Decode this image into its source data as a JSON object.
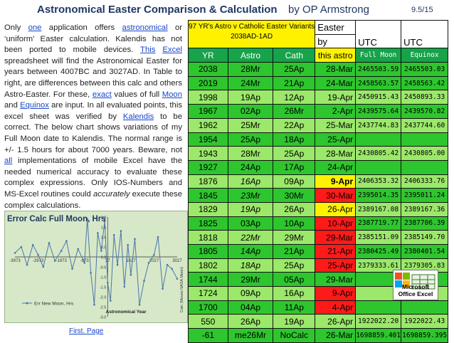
{
  "header": {
    "title": "Astronomical Easter Comparison & Calculation",
    "byline": "by OP Armstrong",
    "version": "9.5/15"
  },
  "intro": {
    "t1": "Only ",
    "l1": "one",
    "t2": " application offers ",
    "l2": "astronomical",
    "t3": " or ‘uniform’ Easter calculation. Kalendis has not been ported to mobile devices. ",
    "l3": "This",
    "t4": " ",
    "l4": "Excel",
    "t5": " spreadsheet will find the Astronomical Easter for years between 4007BC and 3027AD. In Table to right, are differences between this calc and others Astro-Easter. For these, ",
    "l5": "exact",
    "t6": " values of full ",
    "l6": "Moon",
    "t7": " and ",
    "l7": "Equinox",
    "t8": " are input. In all evaluated points, this excel sheet was verified by ",
    "l8": "Kalendis",
    "t9": " to be correct. The below chart shows variations of my Full Moon date to Kalendis. The normal range is +/- 1.5 hours for about 7000 years. Beware, not ",
    "l9": "all",
    "t10": " implementations of mobile Excel have the needed numerical accuracy to evaluate these complex expressions. Only IOS-Numbers and MS-Excel routines could ",
    "em1": "accurately",
    "t11": " execute these complex calculations."
  },
  "error_chart": {
    "title": "Error Calc Full Moon, Hrs",
    "x_ticks": [
      "-3973",
      "-2973",
      "-1973",
      "-973",
      "27",
      "1027",
      "2027",
      "3027"
    ],
    "y_ticks": [
      "2.0",
      "1.5",
      "1.0",
      "0.5",
      "0.0",
      "-0.5",
      "-1.0",
      "-1.5",
      "-2.0",
      "-2.5",
      "-3.0"
    ],
    "legend": "Err New Moon, Hrs",
    "xlabel": "Astronomical Year",
    "side_label": "Calc (Moves NASA Moon)"
  },
  "chart_data": {
    "type": "line",
    "title": "Error Calc Full Moon, Hrs",
    "xlabel": "Astronomical Year",
    "ylabel": "",
    "xlim": [
      -3973,
      3027
    ],
    "ylim": [
      -3.0,
      2.0
    ],
    "series": [
      {
        "name": "Err New Moon, Hrs",
        "x": [
          -3973,
          -3700,
          -3450,
          -3200,
          -2973,
          -2750,
          -2500,
          -2250,
          -1973,
          -1750,
          -1500,
          -1250,
          -973,
          -850,
          -700,
          -550,
          -400,
          -250,
          -100,
          27,
          150,
          300,
          450,
          600,
          750,
          900,
          1027,
          1200,
          1400,
          1600,
          1800,
          2027,
          2200,
          2400,
          2600,
          2800,
          3027
        ],
        "y": [
          0.2,
          0.5,
          -0.4,
          0.6,
          0.1,
          -0.5,
          0.7,
          -0.2,
          0.3,
          0.8,
          -0.6,
          0.4,
          -0.3,
          1.9,
          -0.8,
          -2.4,
          1.2,
          0.3,
          1.8,
          -1.3,
          -2.2,
          1.1,
          -0.4,
          1.3,
          -1.5,
          0.6,
          -0.9,
          0.9,
          -2.4,
          -1.2,
          -0.3,
          0.1,
          1.0,
          -1.6,
          -0.4,
          -0.6,
          -1.1
        ]
      }
    ]
  },
  "footer": {
    "link": "First. Page"
  },
  "table": {
    "hdr_a1": "97 YR's Astro v Catholic Easter Variants",
    "hdr_a2": "2038AD-1AD",
    "hdr_e1": "Easter",
    "hdr_e2": "by",
    "hdr_f": "UTC",
    "hdr_g": "UTC",
    "sub": [
      "YR",
      "Astro",
      "Cath",
      "this astro",
      "Full Moon",
      "Equinox"
    ],
    "rows": [
      [
        "2038",
        "28Mr",
        "25Ap",
        "28-Mar",
        "2465503.59",
        "2465503.03"
      ],
      [
        "2019",
        "24Mr",
        "21Ap",
        "24-Mar",
        "2458563.57",
        "2458563.42"
      ],
      [
        "1998",
        "19Ap",
        "12Ap",
        "19-Apr",
        "2450915.43",
        "2450893.33"
      ],
      [
        "1967",
        "02Ap",
        "26Mr",
        "2-Apr",
        "2439575.64",
        "2439570.82"
      ],
      [
        "1962",
        "25Mr",
        "22Ap",
        "25-Mar",
        "2437744.83",
        "2437744.60"
      ],
      [
        "1954",
        "25Ap",
        "18Ap",
        "25-Apr",
        "",
        ""
      ],
      [
        "1943",
        "28Mr",
        "25Ap",
        "28-Mar",
        "2430805.42",
        "2430805.00"
      ],
      [
        "1927",
        "24Ap",
        "17Ap",
        "24-Apr",
        "",
        ""
      ],
      [
        "1876",
        "16Ap",
        "09Ap",
        "9-Apr",
        "2406353.32",
        "2406333.76"
      ],
      [
        "1845",
        "23Mr",
        "30Mr",
        "30-Mar",
        "2395014.35",
        "2395011.24"
      ],
      [
        "1829",
        "19Ap",
        "26Ap",
        "26-Apr",
        "2389167.08",
        "2389167.36"
      ],
      [
        "1825",
        "03Ap",
        "10Ap",
        "10-Apr",
        "2387719.77",
        "2387706.39"
      ],
      [
        "1818",
        "22Mr",
        "29Mr",
        "29-Mar",
        "2385151.09",
        "2385149.70"
      ],
      [
        "1805",
        "14Ap",
        "21Ap",
        "21-Apr",
        "2380425.49",
        "2380401.54"
      ],
      [
        "1802",
        "18Ap",
        "25Ap",
        "25-Apr",
        "2379333.61",
        "2379305.83"
      ],
      [
        "1744",
        "29Mr",
        "05Ap",
        "29-Mar",
        "",
        ""
      ],
      [
        "1724",
        "09Ap",
        "16Ap",
        "9-Apr",
        "",
        ""
      ],
      [
        "1700",
        "04Ap",
        "11Ap",
        "4-Apr",
        "",
        ""
      ],
      [
        "550",
        "26Ap",
        "19Ap",
        "26-Apr",
        "1922022.20",
        "1922022.43"
      ],
      [
        "-61",
        "me26Mr",
        "NoCalc",
        "26-Mar",
        "1698859.401",
        "1698859.395"
      ]
    ]
  },
  "logo": {
    "line1": "Microsoft",
    "line2": "Office Excel"
  },
  "colors": {
    "green": "#2ec62e",
    "light_green": "#9be86b",
    "red": "#ff1a1a",
    "yellow": "#fff200",
    "header_green": "#16a34a",
    "title": "#1f3864"
  }
}
